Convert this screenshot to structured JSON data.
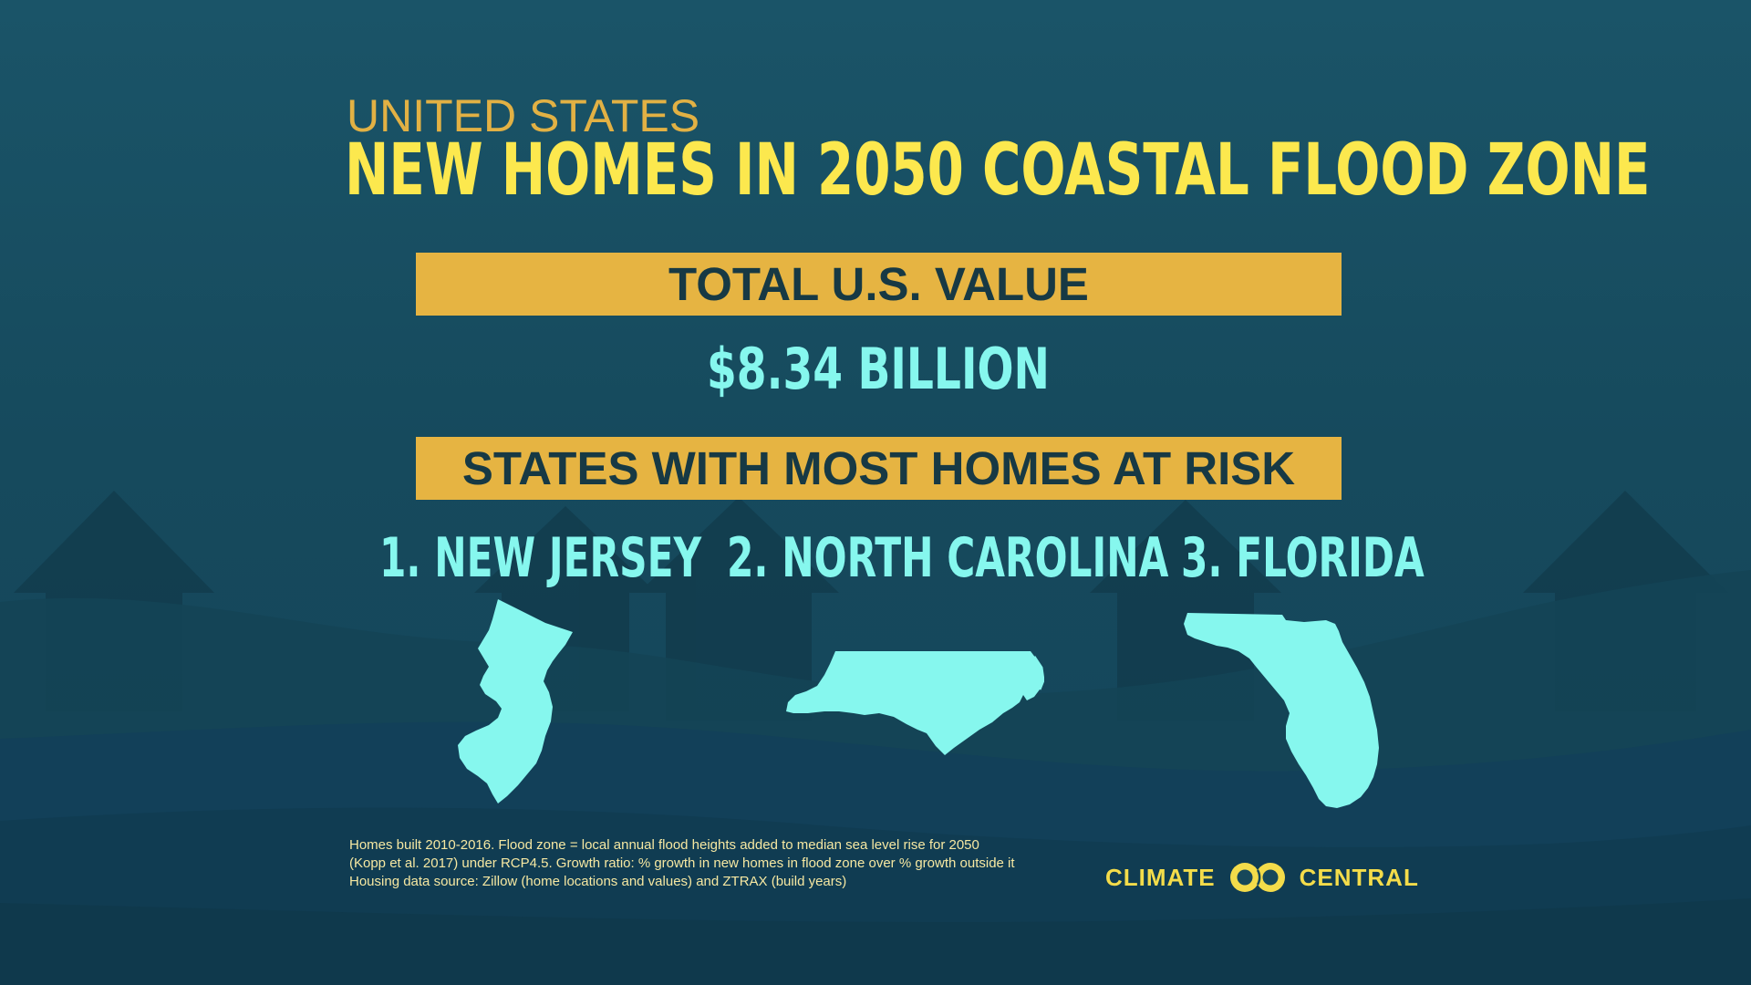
{
  "header": {
    "subtitle": "UNITED STATES",
    "title": "NEW HOMES IN 2050 COASTAL FLOOD ZONE"
  },
  "total": {
    "band_label": "TOTAL U.S. VALUE",
    "value": "$8.34 BILLION"
  },
  "states": {
    "band_label": "STATES WITH MOST HOMES AT RISK",
    "items": [
      {
        "label": "1. NEW JERSEY",
        "map_icon": "new-jersey-map-icon"
      },
      {
        "label": "2. NORTH CAROLINA",
        "map_icon": "north-carolina-map-icon"
      },
      {
        "label": "3. FLORIDA",
        "map_icon": "florida-map-icon"
      }
    ]
  },
  "footnote": {
    "lines": [
      "Homes built 2010-2016. Flood zone = local annual flood heights added to median sea level rise for 2050",
      "(Kopp et al. 2017) under RCP4.5. Growth ratio: % growth in new homes in flood zone over % growth outside it",
      "Housing data source: Zillow (home locations and values) and ZTRAX (build years)"
    ]
  },
  "logo": {
    "left_word": "CLIMATE",
    "right_word": "CENTRAL"
  },
  "colors": {
    "background": "#17485a",
    "title": "#fce84e",
    "subtitle": "#e2b144",
    "band": "#e6b442",
    "band_text": "#173944",
    "accent_cyan": "#86f7ee",
    "footnote": "#f6e8a2",
    "logo": "#f4dc4a"
  }
}
